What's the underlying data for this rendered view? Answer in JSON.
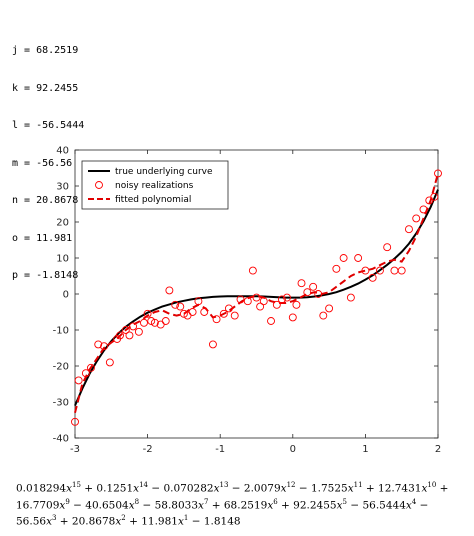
{
  "variables": [
    "j = 68.2519",
    "k = 92.2455",
    "l = -56.5444",
    "m = -56.56",
    "n = 20.8678",
    "o = 11.981",
    "p = -1.8148"
  ],
  "equation_lines": [
    "0.018294x^15 + 0.1251x^14 − 0.070282x^13 − 2.0079x^12 − 1.7525x^11 + 12.7431x^10 +",
    "16.7709x^9 − 40.6504x^8 − 58.8033x^7 + 68.2519x^6 + 92.2455x^5 − 56.5444x^4 −",
    "56.56x^3 + 20.8678x^2 + 11.981x^1 − 1.8148"
  ],
  "chart_data": {
    "type": "line",
    "title": "",
    "xlabel": "",
    "ylabel": "",
    "xlim": [
      -3,
      2
    ],
    "ylim": [
      -40,
      40
    ],
    "xticks": [
      -3,
      -2,
      -1,
      0,
      1,
      2
    ],
    "yticks": [
      -40,
      -30,
      -20,
      -10,
      0,
      10,
      20,
      30,
      40
    ],
    "grid": false,
    "legend_position": "top-left",
    "colors": {
      "true": "#000000",
      "noisy": "#ff0000",
      "fitted": "#e00000"
    },
    "series": [
      {
        "name": "true underlying curve",
        "style": "solid",
        "x": [
          -3.0,
          -2.9,
          -2.8,
          -2.7,
          -2.6,
          -2.5,
          -2.4,
          -2.3,
          -2.2,
          -2.1,
          -2.0,
          -1.9,
          -1.8,
          -1.7,
          -1.6,
          -1.5,
          -1.4,
          -1.3,
          -1.2,
          -1.1,
          -1.0,
          -0.9,
          -0.8,
          -0.7,
          -0.6,
          -0.5,
          -0.4,
          -0.3,
          -0.2,
          -0.1,
          0.0,
          0.1,
          0.2,
          0.3,
          0.4,
          0.5,
          0.6,
          0.7,
          0.8,
          0.9,
          1.0,
          1.1,
          1.2,
          1.3,
          1.4,
          1.5,
          1.6,
          1.7,
          1.8,
          1.9,
          2.0
        ],
        "y": [
          -31.0,
          -26.3,
          -22.2,
          -18.7,
          -15.7,
          -13.1,
          -10.9,
          -9.1,
          -7.6,
          -6.3,
          -5.2,
          -4.3,
          -3.5,
          -2.9,
          -2.3,
          -1.9,
          -1.5,
          -1.2,
          -1.0,
          -0.8,
          -0.7,
          -0.6,
          -0.6,
          -0.6,
          -0.6,
          -0.6,
          -0.7,
          -0.8,
          -0.9,
          -1.0,
          -1.0,
          -1.0,
          -0.9,
          -0.7,
          -0.4,
          0.0,
          0.5,
          1.2,
          2.0,
          2.9,
          4.0,
          5.2,
          6.6,
          8.1,
          9.8,
          11.7,
          14.0,
          16.8,
          20.2,
          24.2,
          29.0
        ]
      },
      {
        "name": "noisy realizations",
        "style": "markers",
        "x": [
          -3.0,
          -2.95,
          -2.85,
          -2.78,
          -2.68,
          -2.6,
          -2.52,
          -2.42,
          -2.38,
          -2.3,
          -2.25,
          -2.2,
          -2.12,
          -2.05,
          -2.0,
          -1.95,
          -1.9,
          -1.82,
          -1.75,
          -1.7,
          -1.62,
          -1.55,
          -1.5,
          -1.45,
          -1.38,
          -1.3,
          -1.22,
          -1.1,
          -1.05,
          -0.95,
          -0.88,
          -0.8,
          -0.72,
          -0.62,
          -0.55,
          -0.5,
          -0.45,
          -0.4,
          -0.3,
          -0.22,
          -0.15,
          -0.08,
          0.0,
          0.05,
          0.12,
          0.2,
          0.28,
          0.35,
          0.42,
          0.5,
          0.6,
          0.7,
          0.8,
          0.9,
          1.0,
          1.1,
          1.2,
          1.3,
          1.4,
          1.5,
          1.6,
          1.7,
          1.8,
          1.88,
          1.95,
          2.0
        ],
        "y": [
          -35.5,
          -24.0,
          -22.0,
          -20.5,
          -14.0,
          -14.5,
          -19.0,
          -12.5,
          -11.5,
          -10.0,
          -11.5,
          -9.0,
          -10.5,
          -8.0,
          -5.5,
          -7.5,
          -8.0,
          -8.5,
          -7.5,
          1.0,
          -3.0,
          -3.5,
          -5.5,
          -6.0,
          -5.0,
          -2.0,
          -5.0,
          -14.0,
          -7.0,
          -5.5,
          -4.0,
          -6.0,
          -1.5,
          -2.0,
          6.5,
          -1.0,
          -3.5,
          -2.0,
          -7.5,
          -3.0,
          -1.5,
          -1.0,
          -6.5,
          -3.0,
          3.0,
          0.5,
          2.0,
          0.0,
          -6.0,
          -4.0,
          7.0,
          10.0,
          -1.0,
          10.0,
          6.5,
          4.5,
          6.5,
          13.0,
          6.5,
          6.5,
          18.0,
          21.0,
          23.5,
          26.0,
          27.0,
          33.5
        ]
      },
      {
        "name": "fitted polynomial",
        "style": "dashed",
        "x": [
          -3.0,
          -2.9,
          -2.8,
          -2.7,
          -2.6,
          -2.5,
          -2.4,
          -2.3,
          -2.2,
          -2.1,
          -2.0,
          -1.9,
          -1.8,
          -1.7,
          -1.6,
          -1.5,
          -1.4,
          -1.3,
          -1.2,
          -1.1,
          -1.0,
          -0.9,
          -0.8,
          -0.7,
          -0.6,
          -0.5,
          -0.4,
          -0.3,
          -0.2,
          -0.1,
          0.0,
          0.1,
          0.2,
          0.3,
          0.4,
          0.5,
          0.6,
          0.7,
          0.8,
          0.9,
          1.0,
          1.1,
          1.2,
          1.3,
          1.4,
          1.5,
          1.6,
          1.7,
          1.8,
          1.9,
          2.0
        ],
        "y": [
          -33.0,
          -25.0,
          -21.0,
          -18.0,
          -15.0,
          -13.5,
          -12.0,
          -10.0,
          -8.5,
          -7.5,
          -6.0,
          -5.0,
          -4.5,
          -5.5,
          -6.0,
          -5.5,
          -4.0,
          -3.0,
          -4.0,
          -6.5,
          -6.0,
          -5.0,
          -3.5,
          -2.0,
          -1.0,
          -0.5,
          -1.0,
          -2.0,
          -2.5,
          -2.5,
          -2.0,
          -1.0,
          0.0,
          0.5,
          0.0,
          0.5,
          2.0,
          3.5,
          5.0,
          6.0,
          6.5,
          7.0,
          8.0,
          9.0,
          9.5,
          9.0,
          12.0,
          16.0,
          21.0,
          26.0,
          33.5
        ]
      }
    ]
  }
}
